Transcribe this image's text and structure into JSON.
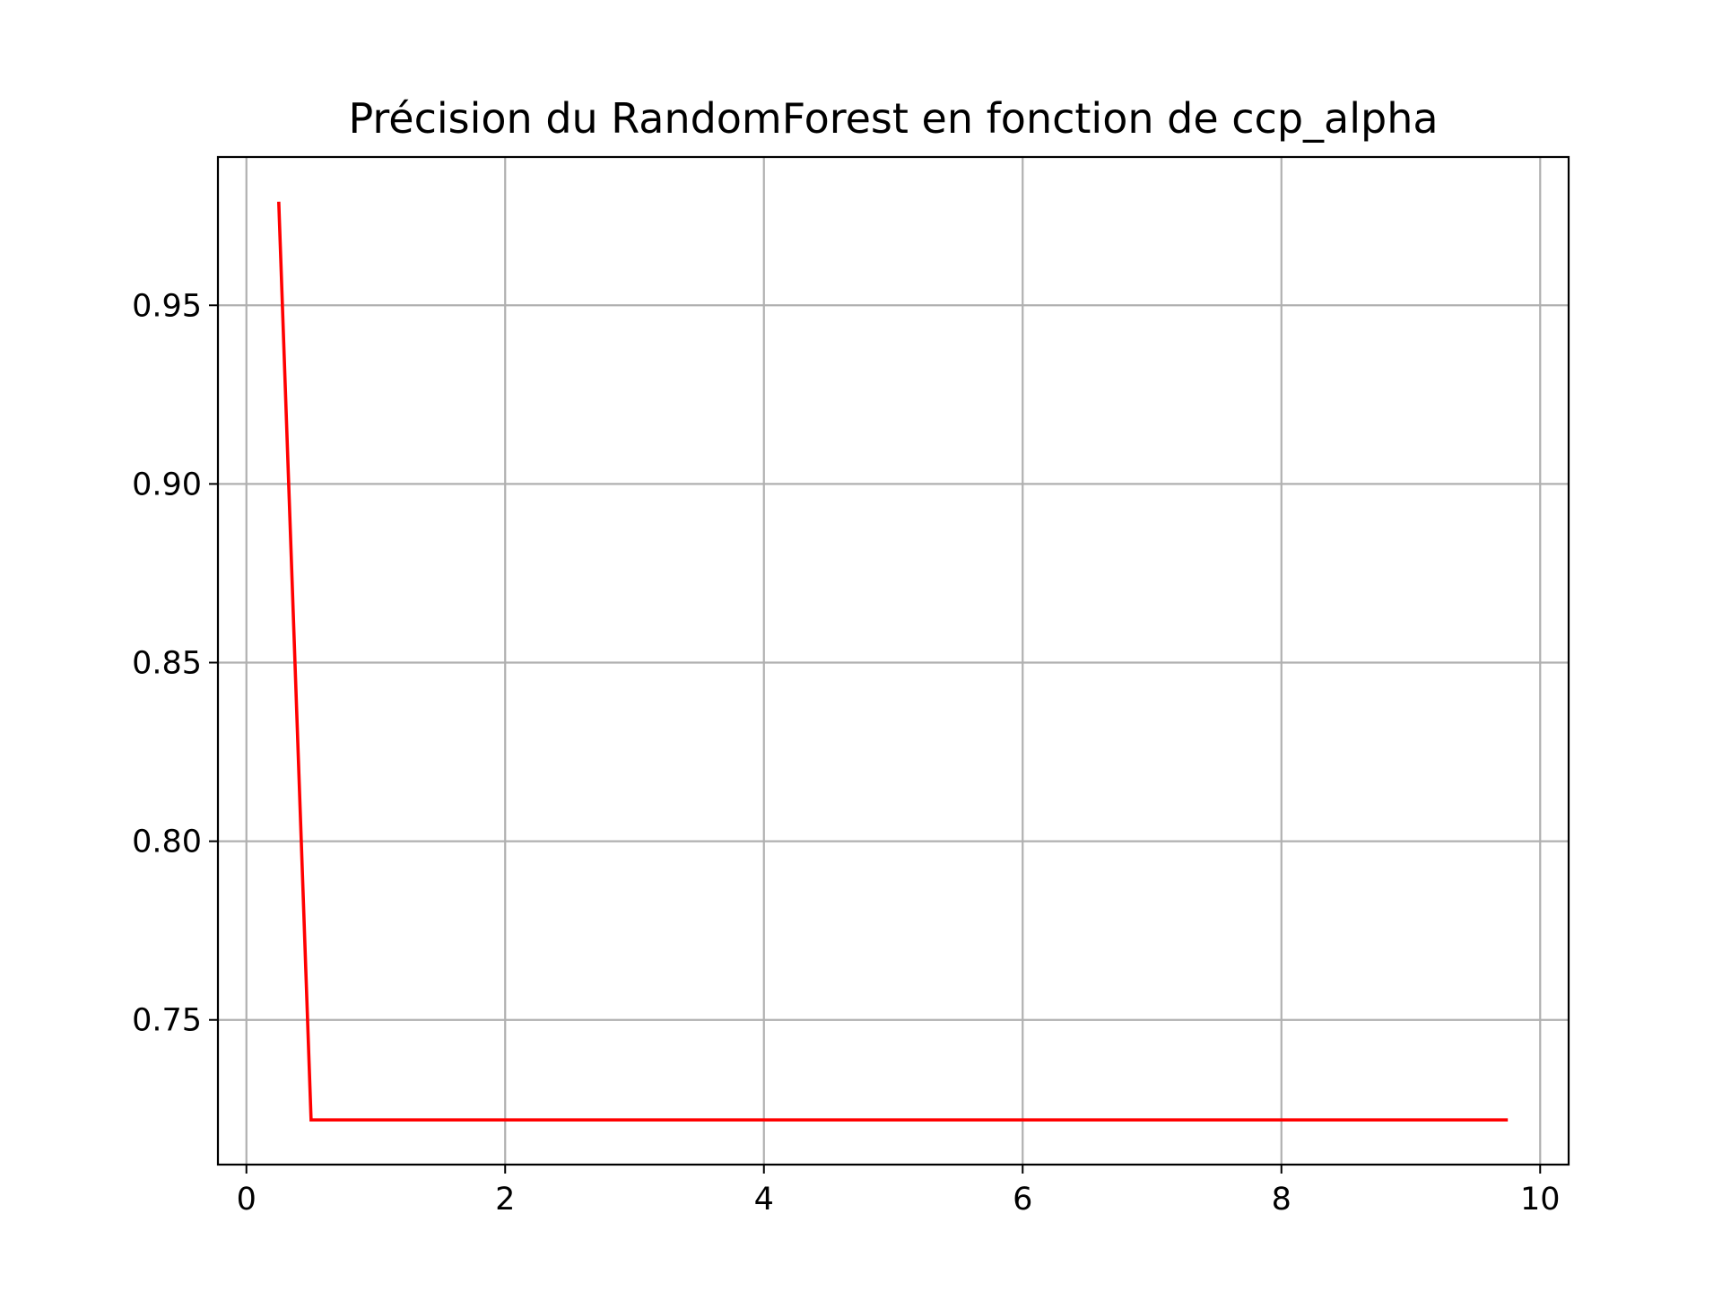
{
  "chart_data": {
    "type": "line",
    "title": "Précision du RandomForest en fonction de ccp_alpha",
    "xlabel": "",
    "ylabel": "",
    "xlim": [
      -0.22,
      10.22
    ],
    "ylim": [
      0.7095,
      0.9915
    ],
    "x_ticks": [
      0,
      2,
      4,
      6,
      8,
      10
    ],
    "x_tick_labels": [
      "0",
      "2",
      "4",
      "6",
      "8",
      "10"
    ],
    "y_ticks": [
      0.75,
      0.8,
      0.85,
      0.9,
      0.95
    ],
    "y_tick_labels": [
      "0.75",
      "0.80",
      "0.85",
      "0.90",
      "0.95"
    ],
    "grid": true,
    "legend": "none",
    "series": [
      {
        "color": "#ff0000",
        "x": [
          0.25,
          0.5,
          9.75
        ],
        "y": [
          0.979,
          0.722,
          0.722
        ]
      }
    ],
    "colors": {
      "line": "#ff0000",
      "grid": "#b0b0b0",
      "frame": "#000000"
    }
  }
}
